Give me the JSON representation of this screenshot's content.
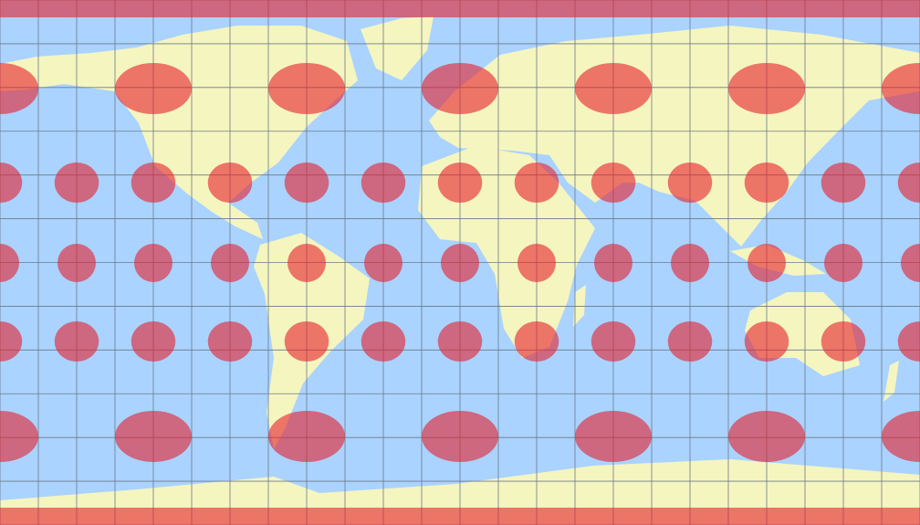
{
  "map": {
    "projection": "equirectangular",
    "colors": {
      "ocean": "#aad3ff",
      "land": "#f5f5c0",
      "indicatrix": "#e6202c",
      "graticule": "#6e7a86"
    },
    "graticule_step_degrees": 15,
    "tissot_indicatrices": {
      "rows": [
        {
          "lat": 90,
          "lon_step": 360
        },
        {
          "lat": 60,
          "lon_step": 60
        },
        {
          "lat": 30,
          "lon_step": 30
        },
        {
          "lat": 0,
          "lon_step": 30
        },
        {
          "lat": -30,
          "lon_step": 30
        },
        {
          "lat": -60,
          "lon_step": 60
        },
        {
          "lat": -90,
          "lon_step": 360
        }
      ]
    }
  }
}
